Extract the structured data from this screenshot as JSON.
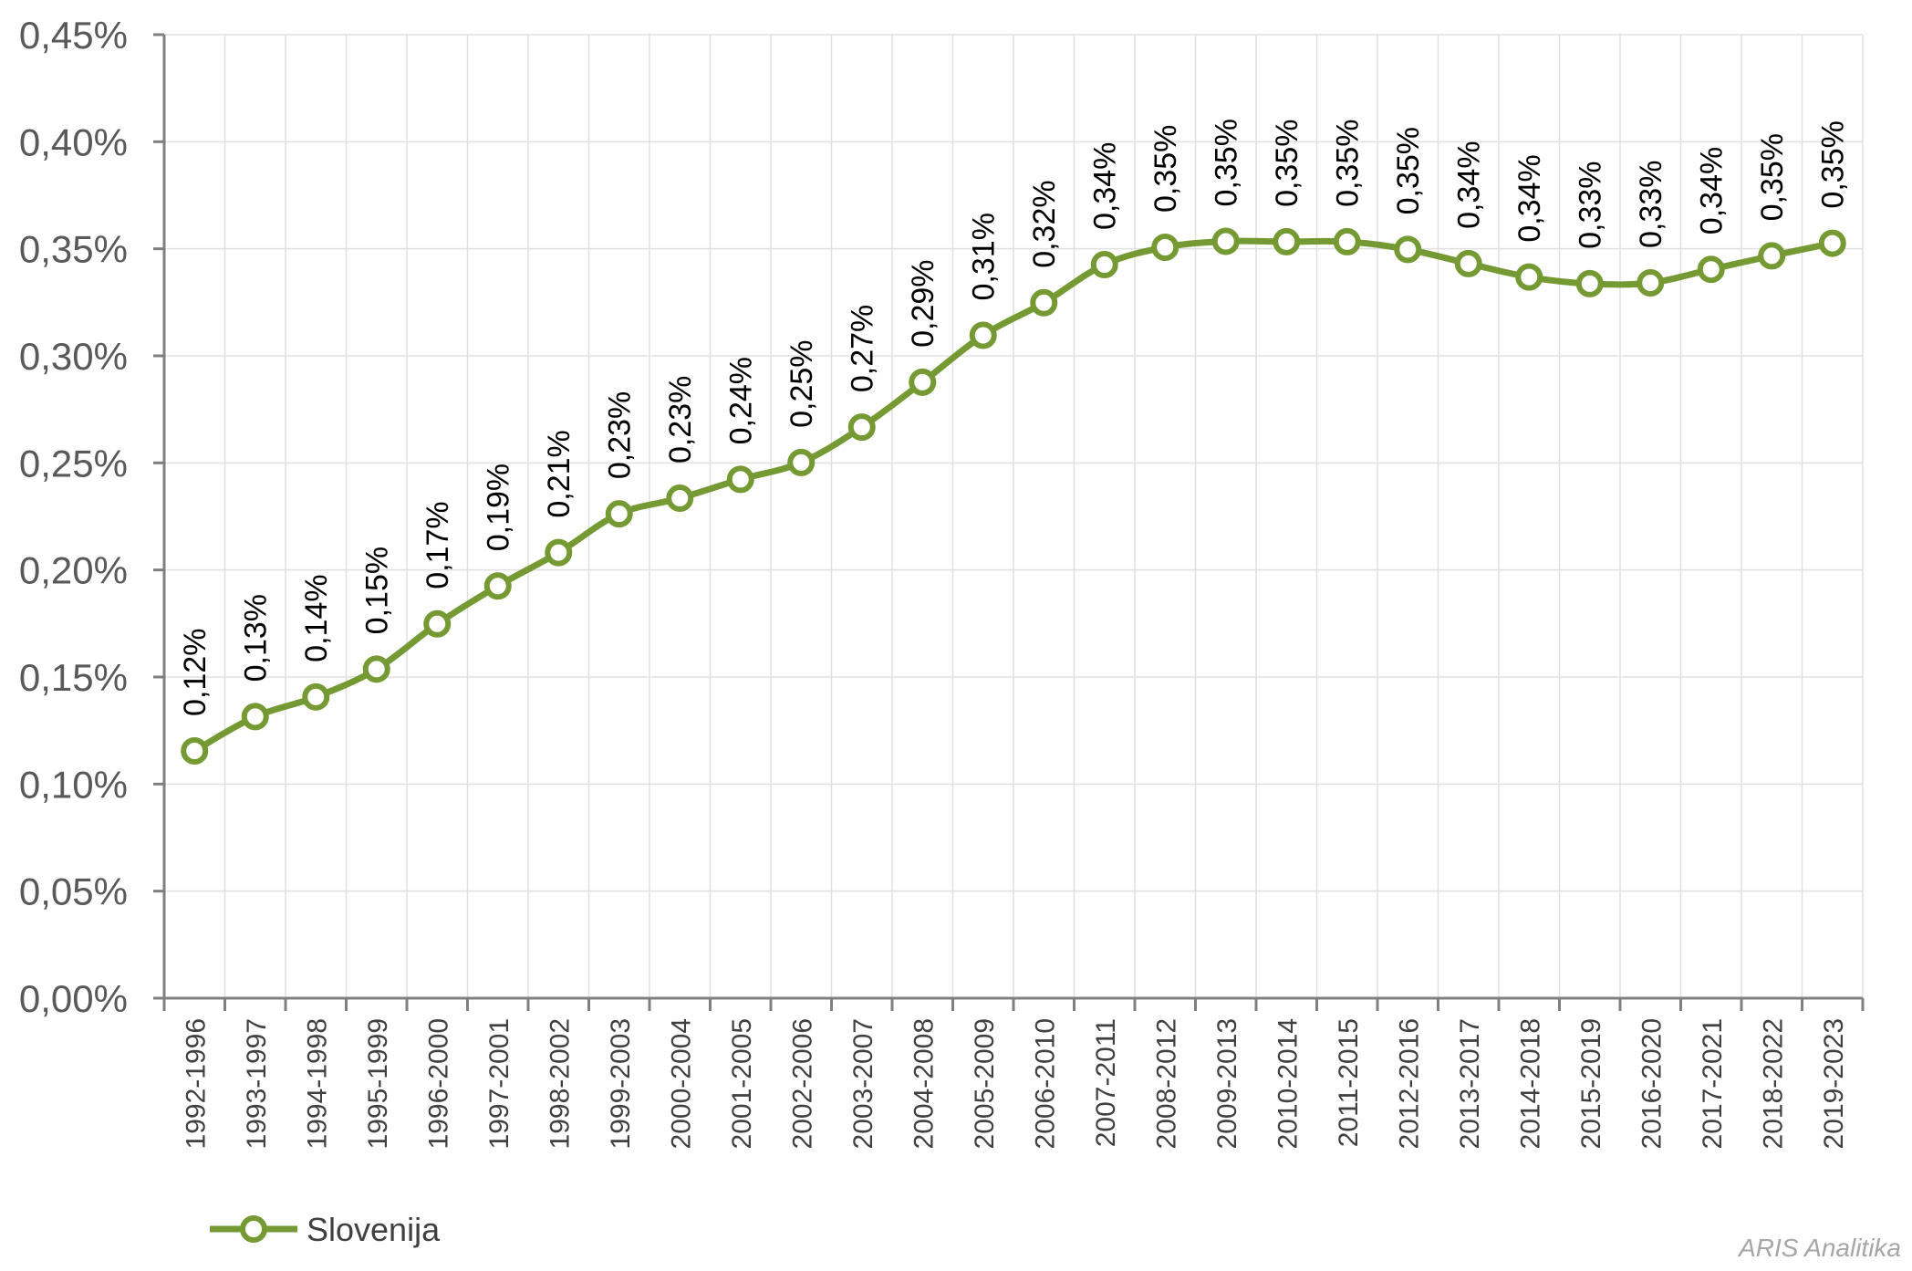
{
  "chart_data": {
    "type": "line",
    "categories": [
      "1992-1996",
      "1993-1997",
      "1994-1998",
      "1995-1999",
      "1996-2000",
      "1997-2001",
      "1998-2002",
      "1999-2003",
      "2000-2004",
      "2001-2005",
      "2002-2006",
      "2003-2007",
      "2004-2008",
      "2005-2009",
      "2006-2010",
      "2007-2011",
      "2008-2012",
      "2009-2013",
      "2010-2014",
      "2011-2015",
      "2012-2016",
      "2013-2017",
      "2014-2018",
      "2015-2019",
      "2016-2020",
      "2017-2021",
      "2018-2022",
      "2019-2023"
    ],
    "series": [
      {
        "name": "Slovenija",
        "color": "#759a34",
        "values": [
          0.1155,
          0.1315,
          0.1407,
          0.1537,
          0.1748,
          0.1925,
          0.2081,
          0.2262,
          0.2335,
          0.2423,
          0.2502,
          0.2667,
          0.2877,
          0.3096,
          0.3248,
          0.3426,
          0.3507,
          0.3535,
          0.3533,
          0.3533,
          0.3497,
          0.3431,
          0.3368,
          0.3337,
          0.3341,
          0.3404,
          0.3467,
          0.3526
        ],
        "data_labels": [
          "0,12%",
          "0,13%",
          "0,14%",
          "0,15%",
          "0,17%",
          "0,19%",
          "0,21%",
          "0,23%",
          "0,23%",
          "0,24%",
          "0,25%",
          "0,27%",
          "0,29%",
          "0,31%",
          "0,32%",
          "0,34%",
          "0,35%",
          "0,35%",
          "0,35%",
          "0,35%",
          "0,35%",
          "0,34%",
          "0,34%",
          "0,33%",
          "0,33%",
          "0,34%",
          "0,35%",
          "0,35%"
        ]
      }
    ],
    "yticks": [
      "0,00%",
      "0,05%",
      "0,10%",
      "0,15%",
      "0,20%",
      "0,25%",
      "0,30%",
      "0,35%",
      "0,40%",
      "0,45%"
    ],
    "ylim": [
      0,
      0.45
    ],
    "grid": true,
    "legend_position": "bottom-left",
    "title": "",
    "xlabel": "",
    "ylabel": ""
  },
  "legend": {
    "label": "Slovenija"
  },
  "watermark": "ARIS Analitika"
}
